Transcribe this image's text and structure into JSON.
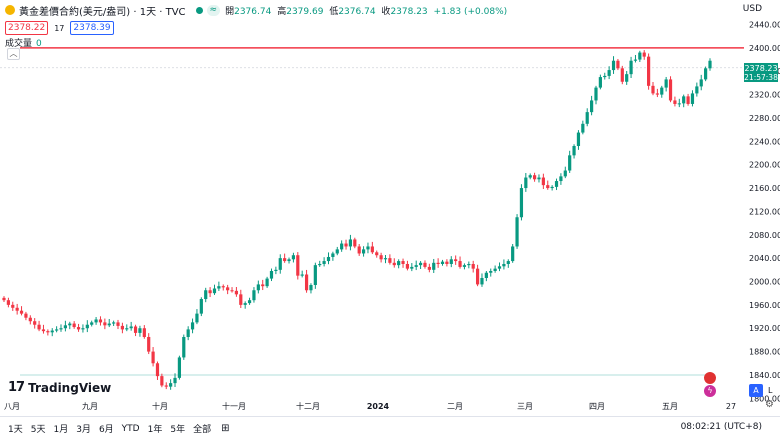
{
  "header": {
    "title": "黃金差價合約(美元/盎司) · 1天 · TVC",
    "open_label": "開",
    "open": "2376.74",
    "high_label": "高",
    "high": "2379.69",
    "low_label": "低",
    "low": "2376.74",
    "close_label": "收",
    "close": "2378.23",
    "change": "+1.83 (+0.08%)",
    "currency": "USD"
  },
  "quote": {
    "sell": "2378.22",
    "spread": "17",
    "buy": "2378.39"
  },
  "volume": {
    "label": "成交量",
    "value": "0"
  },
  "price_tag": {
    "price": "2378.23",
    "countdown": "21:57:38"
  },
  "branding": "TradingView",
  "toolbar": {
    "ranges": [
      "1天",
      "5天",
      "1月",
      "3月",
      "6月",
      "YTD",
      "1年",
      "5年",
      "全部"
    ],
    "time": "08:02:21 (UTC+8)",
    "scale_auto": "A",
    "scale_log": "L"
  },
  "colors": {
    "up": "#089981",
    "down": "#f23645",
    "resistance": "#f23645",
    "support": "#b2dfdb",
    "accent": "#2962ff"
  },
  "chart_data": {
    "type": "candlestick",
    "x_tick_labels": [
      "八月",
      "九月",
      "十月",
      "十一月",
      "十二月",
      "2024",
      "二月",
      "三月",
      "四月",
      "五月",
      "27"
    ],
    "y_ticks": [
      1800,
      1840,
      1880,
      1920,
      1960,
      2000,
      2040,
      2080,
      2120,
      2160,
      2200,
      2240,
      2280,
      2320,
      2360,
      2400,
      2440
    ],
    "ylim": [
      1780,
      2458
    ],
    "horizontal_lines": [
      {
        "value": 2400,
        "color": "#f23645"
      },
      {
        "value": 1840,
        "color": "#b2dfdb"
      }
    ],
    "series_close": [
      1968,
      1960,
      1955,
      1950,
      1945,
      1938,
      1932,
      1926,
      1918,
      1915,
      1913,
      1916,
      1918,
      1920,
      1925,
      1928,
      1922,
      1918,
      1920,
      1926,
      1930,
      1935,
      1930,
      1925,
      1928,
      1930,
      1924,
      1918,
      1920,
      1923,
      1912,
      1920,
      1905,
      1880,
      1860,
      1838,
      1822,
      1820,
      1826,
      1835,
      1870,
      1905,
      1918,
      1930,
      1945,
      1970,
      1985,
      1980,
      1988,
      1992,
      1990,
      1985,
      1984,
      1978,
      1960,
      1963,
      1968,
      1985,
      1995,
      1992,
      2005,
      2018,
      2020,
      2040,
      2035,
      2038,
      2045,
      2010,
      2012,
      1985,
      1994,
      2028,
      2030,
      2035,
      2042,
      2048,
      2055,
      2065,
      2060,
      2072,
      2060,
      2048,
      2055,
      2060,
      2050,
      2045,
      2038,
      2040,
      2032,
      2028,
      2035,
      2030,
      2022,
      2025,
      2028,
      2032,
      2025,
      2020,
      2032,
      2030,
      2034,
      2030,
      2038,
      2035,
      2025,
      2028,
      2030,
      2022,
      1995,
      2006,
      2015,
      2018,
      2022,
      2026,
      2030,
      2035,
      2060,
      2110,
      2160,
      2178,
      2182,
      2175,
      2178,
      2165,
      2160,
      2162,
      2172,
      2180,
      2190,
      2216,
      2232,
      2255,
      2270,
      2290,
      2310,
      2332,
      2350,
      2352,
      2362,
      2378,
      2365,
      2342,
      2355,
      2378,
      2380,
      2392,
      2385,
      2335,
      2322,
      2320,
      2332,
      2346,
      2310,
      2304,
      2305,
      2317,
      2304,
      2322,
      2334,
      2346,
      2365,
      2378
    ]
  }
}
